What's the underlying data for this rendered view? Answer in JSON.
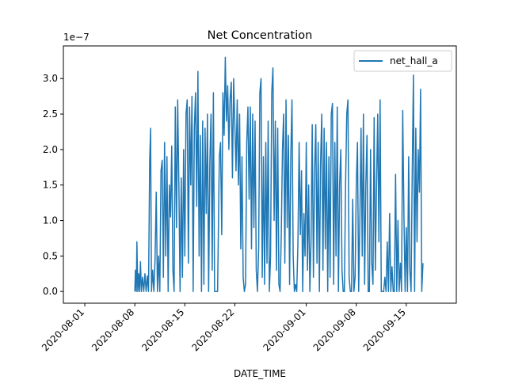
{
  "chart_data": {
    "type": "line",
    "title": "Net Concentration",
    "xlabel": "DATE_TIME",
    "ylabel": "",
    "y_offset_label": "1e−7",
    "y_scale": 1e-07,
    "xlim": [
      "2020-07-29",
      "2020-09-22"
    ],
    "ylim": [
      -1.65e-08,
      3.46e-07
    ],
    "x_ticks": [
      "2020-08-01",
      "2020-08-08",
      "2020-08-15",
      "2020-08-22",
      "2020-09-01",
      "2020-09-08",
      "2020-09-15"
    ],
    "y_ticks": [
      0.0,
      0.5,
      1.0,
      1.5,
      2.0,
      2.5,
      3.0
    ],
    "y_tick_labels": [
      "0.0",
      "0.5",
      "1.0",
      "1.5",
      "2.0",
      "2.5",
      "3.0"
    ],
    "grid": false,
    "legend_position": "top-right",
    "series": [
      {
        "name": "net_hall_a",
        "color": "#1f77b4",
        "points": [
          [
            "2020-08-08T00:00",
            0.0
          ],
          [
            "2020-08-08T02:00",
            3e-08
          ],
          [
            "2020-08-08T05:00",
            0.0
          ],
          [
            "2020-08-08T07:00",
            7e-08
          ],
          [
            "2020-08-08T10:00",
            0.0
          ],
          [
            "2020-08-08T13:00",
            2.5e-08
          ],
          [
            "2020-08-08T16:00",
            0.0
          ],
          [
            "2020-08-08T19:00",
            4.2e-08
          ],
          [
            "2020-08-08T22:00",
            0.0
          ],
          [
            "2020-08-09T02:00",
            2e-08
          ],
          [
            "2020-08-09T06:00",
            0.0
          ],
          [
            "2020-08-09T10:00",
            2.5e-08
          ],
          [
            "2020-08-09T14:00",
            0.0
          ],
          [
            "2020-08-09T18:00",
            2.2e-08
          ],
          [
            "2020-08-09T22:00",
            0.0
          ],
          [
            "2020-08-10T02:00",
            1.85e-07
          ],
          [
            "2020-08-10T05:00",
            2.3e-07
          ],
          [
            "2020-08-10T08:00",
            0.0
          ],
          [
            "2020-08-10T12:00",
            3e-08
          ],
          [
            "2020-08-10T16:00",
            0.0
          ],
          [
            "2020-08-10T20:00",
            4.5e-08
          ],
          [
            "2020-08-11T00:00",
            1.4e-07
          ],
          [
            "2020-08-11T04:00",
            0.0
          ],
          [
            "2020-08-11T08:00",
            5e-08
          ],
          [
            "2020-08-11T12:00",
            0.0
          ],
          [
            "2020-08-11T16:00",
            1.7e-07
          ],
          [
            "2020-08-11T20:00",
            1.85e-07
          ],
          [
            "2020-08-12T00:00",
            2e-08
          ],
          [
            "2020-08-12T04:00",
            2.1e-07
          ],
          [
            "2020-08-12T08:00",
            5e-08
          ],
          [
            "2020-08-12T12:00",
            1.9e-07
          ],
          [
            "2020-08-12T16:00",
            0.0
          ],
          [
            "2020-08-12T20:00",
            1.5e-07
          ],
          [
            "2020-08-13T00:00",
            1.05e-07
          ],
          [
            "2020-08-13T04:00",
            2.05e-07
          ],
          [
            "2020-08-13T08:00",
            3e-08
          ],
          [
            "2020-08-13T12:00",
            0.0
          ],
          [
            "2020-08-13T16:00",
            2.6e-07
          ],
          [
            "2020-08-13T20:00",
            9e-08
          ],
          [
            "2020-08-14T00:00",
            2.7e-07
          ],
          [
            "2020-08-14T04:00",
            1.5e-07
          ],
          [
            "2020-08-14T08:00",
            0.0
          ],
          [
            "2020-08-14T12:00",
            1.6e-07
          ],
          [
            "2020-08-14T16:00",
            2e-08
          ],
          [
            "2020-08-14T20:00",
            2e-07
          ],
          [
            "2020-08-15T00:00",
            5e-08
          ],
          [
            "2020-08-15T04:00",
            2.5e-07
          ],
          [
            "2020-08-15T08:00",
            2.7e-07
          ],
          [
            "2020-08-15T12:00",
            4e-08
          ],
          [
            "2020-08-15T16:00",
            2.6e-07
          ],
          [
            "2020-08-15T20:00",
            1.5e-07
          ],
          [
            "2020-08-16T00:00",
            2.75e-07
          ],
          [
            "2020-08-16T04:00",
            0.0
          ],
          [
            "2020-08-16T08:00",
            2.3e-07
          ],
          [
            "2020-08-16T12:00",
            2.8e-07
          ],
          [
            "2020-08-16T16:00",
            1.2e-07
          ],
          [
            "2020-08-16T20:00",
            3.1e-07
          ],
          [
            "2020-08-17T00:00",
            5e-08
          ],
          [
            "2020-08-17T04:00",
            2.2e-07
          ],
          [
            "2020-08-17T08:00",
            0.0
          ],
          [
            "2020-08-17T12:00",
            2.4e-07
          ],
          [
            "2020-08-17T16:00",
            1e-08
          ],
          [
            "2020-08-17T20:00",
            2.3e-07
          ],
          [
            "2020-08-18T00:00",
            1.1e-07
          ],
          [
            "2020-08-18T04:00",
            2.5e-07
          ],
          [
            "2020-08-18T08:00",
            0.0
          ],
          [
            "2020-08-18T12:00",
            1.8e-07
          ],
          [
            "2020-08-18T16:00",
            2.5e-07
          ],
          [
            "2020-08-18T20:00",
            3e-08
          ],
          [
            "2020-08-19T00:00",
            2.8e-07
          ],
          [
            "2020-08-19T04:00",
            0.0
          ],
          [
            "2020-08-19T08:00",
            0.0
          ],
          [
            "2020-08-19T14:00",
            0.0
          ],
          [
            "2020-08-19T20:00",
            1.9e-07
          ],
          [
            "2020-08-20T00:00",
            2.1e-07
          ],
          [
            "2020-08-20T04:00",
            8e-08
          ],
          [
            "2020-08-20T08:00",
            2.8e-07
          ],
          [
            "2020-08-20T12:00",
            2.2e-07
          ],
          [
            "2020-08-20T16:00",
            3.3e-07
          ],
          [
            "2020-08-20T20:00",
            2.4e-07
          ],
          [
            "2020-08-21T00:00",
            2.9e-07
          ],
          [
            "2020-08-21T04:00",
            2e-07
          ],
          [
            "2020-08-21T08:00",
            2.7e-07
          ],
          [
            "2020-08-21T12:00",
            2.95e-07
          ],
          [
            "2020-08-21T16:00",
            1.6e-07
          ],
          [
            "2020-08-21T20:00",
            3e-07
          ],
          [
            "2020-08-22T00:00",
            2.35e-07
          ],
          [
            "2020-08-22T04:00",
            1.7e-07
          ],
          [
            "2020-08-22T08:00",
            2.7e-07
          ],
          [
            "2020-08-22T12:00",
            1.5e-07
          ],
          [
            "2020-08-22T16:00",
            2.5e-07
          ],
          [
            "2020-08-22T20:00",
            6e-08
          ],
          [
            "2020-08-23T00:00",
            1.9e-07
          ],
          [
            "2020-08-23T04:00",
            2e-08
          ],
          [
            "2020-08-23T08:00",
            0.0
          ],
          [
            "2020-08-23T12:00",
            1e-08
          ],
          [
            "2020-08-23T16:00",
            2.1e-07
          ],
          [
            "2020-08-23T20:00",
            2.6e-07
          ],
          [
            "2020-08-24T00:00",
            1.3e-07
          ],
          [
            "2020-08-24T04:00",
            2.6e-07
          ],
          [
            "2020-08-24T08:00",
            6e-08
          ],
          [
            "2020-08-24T12:00",
            2.5e-07
          ],
          [
            "2020-08-24T16:00",
            9e-08
          ],
          [
            "2020-08-24T20:00",
            2.4e-07
          ],
          [
            "2020-08-25T00:00",
            3e-08
          ],
          [
            "2020-08-25T04:00",
            0.0
          ],
          [
            "2020-08-25T08:00",
            6e-08
          ],
          [
            "2020-08-25T12:00",
            2.8e-07
          ],
          [
            "2020-08-25T16:00",
            3e-07
          ],
          [
            "2020-08-25T20:00",
            2e-08
          ],
          [
            "2020-08-26T00:00",
            1.9e-07
          ],
          [
            "2020-08-26T04:00",
            1e-08
          ],
          [
            "2020-08-26T08:00",
            2.1e-07
          ],
          [
            "2020-08-26T12:00",
            4e-08
          ],
          [
            "2020-08-26T16:00",
            2.4e-07
          ],
          [
            "2020-08-26T20:00",
            0.0
          ],
          [
            "2020-08-27T00:00",
            5e-08
          ],
          [
            "2020-08-27T04:00",
            2.8e-07
          ],
          [
            "2020-08-27T08:00",
            3.15e-07
          ],
          [
            "2020-08-27T12:00",
            1e-07
          ],
          [
            "2020-08-27T16:00",
            2.4e-07
          ],
          [
            "2020-08-27T20:00",
            3e-08
          ],
          [
            "2020-08-28T00:00",
            2.3e-07
          ],
          [
            "2020-08-28T04:00",
            1e-08
          ],
          [
            "2020-08-28T08:00",
            0.0
          ],
          [
            "2020-08-28T12:00",
            8e-08
          ],
          [
            "2020-08-28T16:00",
            2e-07
          ],
          [
            "2020-08-28T20:00",
            2.5e-07
          ],
          [
            "2020-08-29T00:00",
            4e-08
          ],
          [
            "2020-08-29T04:00",
            2.7e-07
          ],
          [
            "2020-08-29T08:00",
            9e-08
          ],
          [
            "2020-08-29T12:00",
            2.2e-07
          ],
          [
            "2020-08-29T16:00",
            1e-08
          ],
          [
            "2020-08-29T20:00",
            1.9e-07
          ],
          [
            "2020-08-30T00:00",
            2.7e-07
          ],
          [
            "2020-08-30T04:00",
            5e-08
          ],
          [
            "2020-08-30T08:00",
            0.0
          ],
          [
            "2020-08-30T12:00",
            1e-08
          ],
          [
            "2020-08-30T16:00",
            0.0
          ],
          [
            "2020-08-30T20:00",
            7e-08
          ],
          [
            "2020-08-31T00:00",
            2.1e-07
          ],
          [
            "2020-08-31T04:00",
            8e-08
          ],
          [
            "2020-08-31T08:00",
            1.7e-07
          ],
          [
            "2020-08-31T12:00",
            0.0
          ],
          [
            "2020-08-31T16:00",
            1.1e-07
          ],
          [
            "2020-08-31T20:00",
            5e-08
          ],
          [
            "2020-09-01T00:00",
            2.1e-07
          ],
          [
            "2020-09-01T04:00",
            3e-08
          ],
          [
            "2020-09-01T08:00",
            1.5e-07
          ],
          [
            "2020-09-01T12:00",
            0.0
          ],
          [
            "2020-09-01T16:00",
            7e-08
          ],
          [
            "2020-09-01T20:00",
            2.35e-07
          ],
          [
            "2020-09-02T00:00",
            2e-08
          ],
          [
            "2020-09-02T04:00",
            1.7e-07
          ],
          [
            "2020-09-02T08:00",
            2.35e-07
          ],
          [
            "2020-09-02T12:00",
            4e-08
          ],
          [
            "2020-09-02T16:00",
            2.1e-07
          ],
          [
            "2020-09-02T20:00",
            0.0
          ],
          [
            "2020-09-03T00:00",
            1.8e-07
          ],
          [
            "2020-09-03T04:00",
            2.5e-07
          ],
          [
            "2020-09-03T08:00",
            3e-08
          ],
          [
            "2020-09-03T12:00",
            2.3e-07
          ],
          [
            "2020-09-03T16:00",
            6e-08
          ],
          [
            "2020-09-03T20:00",
            2.1e-07
          ],
          [
            "2020-09-04T00:00",
            0.0
          ],
          [
            "2020-09-04T04:00",
            1.9e-07
          ],
          [
            "2020-09-04T08:00",
            2e-08
          ],
          [
            "2020-09-04T12:00",
            2.5e-07
          ],
          [
            "2020-09-04T16:00",
            2.65e-07
          ],
          [
            "2020-09-04T20:00",
            1e-08
          ],
          [
            "2020-09-05T00:00",
            2.1e-07
          ],
          [
            "2020-09-05T04:00",
            5e-08
          ],
          [
            "2020-09-05T08:00",
            2.6e-07
          ],
          [
            "2020-09-05T12:00",
            0.0
          ],
          [
            "2020-09-05T16:00",
            1.5e-07
          ],
          [
            "2020-09-05T20:00",
            2e-07
          ],
          [
            "2020-09-06T00:00",
            3e-08
          ],
          [
            "2020-09-06T04:00",
            0.0
          ],
          [
            "2020-09-06T08:00",
            0.0
          ],
          [
            "2020-09-06T12:00",
            1.5e-07
          ],
          [
            "2020-09-06T16:00",
            2.5e-07
          ],
          [
            "2020-09-06T20:00",
            2.7e-07
          ],
          [
            "2020-09-07T00:00",
            2e-08
          ],
          [
            "2020-09-07T04:00",
            0.0
          ],
          [
            "2020-09-07T08:00",
            0.0
          ],
          [
            "2020-09-07T12:00",
            1.3e-07
          ],
          [
            "2020-09-07T16:00",
            0.0
          ],
          [
            "2020-09-07T20:00",
            2e-08
          ],
          [
            "2020-09-08T00:00",
            1.5e-07
          ],
          [
            "2020-09-08T04:00",
            2.1e-07
          ],
          [
            "2020-09-08T08:00",
            0.0
          ],
          [
            "2020-09-08T12:00",
            1e-07
          ],
          [
            "2020-09-08T16:00",
            2.3e-07
          ],
          [
            "2020-09-08T20:00",
            5e-08
          ],
          [
            "2020-09-09T00:00",
            2.5e-07
          ],
          [
            "2020-09-09T04:00",
            1e-08
          ],
          [
            "2020-09-09T08:00",
            1.5e-07
          ],
          [
            "2020-09-09T12:00",
            2.2e-07
          ],
          [
            "2020-09-09T16:00",
            0.0
          ],
          [
            "2020-09-09T20:00",
            0.0
          ],
          [
            "2020-09-10T00:00",
            2e-07
          ],
          [
            "2020-09-10T04:00",
            4e-08
          ],
          [
            "2020-09-10T08:00",
            1e-08
          ],
          [
            "2020-09-10T12:00",
            2.45e-07
          ],
          [
            "2020-09-10T16:00",
            3e-08
          ],
          [
            "2020-09-10T20:00",
            1.5e-07
          ],
          [
            "2020-09-11T00:00",
            2.5e-07
          ],
          [
            "2020-09-11T04:00",
            7e-08
          ],
          [
            "2020-09-11T08:00",
            2.7e-07
          ],
          [
            "2020-09-11T12:00",
            0.0
          ],
          [
            "2020-09-11T16:00",
            0.0
          ],
          [
            "2020-09-11T20:00",
            0.0
          ],
          [
            "2020-09-12T00:00",
            2e-08
          ],
          [
            "2020-09-12T04:00",
            0.0
          ],
          [
            "2020-09-12T08:00",
            7e-08
          ],
          [
            "2020-09-12T12:00",
            0.0
          ],
          [
            "2020-09-12T16:00",
            1.1e-07
          ],
          [
            "2020-09-12T20:00",
            0.0
          ],
          [
            "2020-09-13T00:00",
            3.5e-08
          ],
          [
            "2020-09-13T04:00",
            0.0
          ],
          [
            "2020-09-13T08:00",
            0.0
          ],
          [
            "2020-09-13T12:00",
            1.65e-07
          ],
          [
            "2020-09-13T16:00",
            0.0
          ],
          [
            "2020-09-13T20:00",
            1e-07
          ],
          [
            "2020-09-14T00:00",
            0.0
          ],
          [
            "2020-09-14T04:00",
            4e-08
          ],
          [
            "2020-09-14T08:00",
            0.0
          ],
          [
            "2020-09-14T12:00",
            2.55e-07
          ],
          [
            "2020-09-14T16:00",
            1.1e-07
          ],
          [
            "2020-09-14T20:00",
            0.0
          ],
          [
            "2020-09-15T00:00",
            9e-08
          ],
          [
            "2020-09-15T04:00",
            0.0
          ],
          [
            "2020-09-15T08:00",
            1.9e-07
          ],
          [
            "2020-09-15T12:00",
            3e-08
          ],
          [
            "2020-09-15T16:00",
            0.0
          ],
          [
            "2020-09-15T20:00",
            1.7e-07
          ],
          [
            "2020-09-16T00:00",
            3.05e-07
          ],
          [
            "2020-09-16T04:00",
            0.0
          ],
          [
            "2020-09-16T08:00",
            2.3e-07
          ],
          [
            "2020-09-16T12:00",
            7e-08
          ],
          [
            "2020-09-16T16:00",
            2e-07
          ],
          [
            "2020-09-16T20:00",
            1.4e-07
          ],
          [
            "2020-09-17T00:00",
            2.85e-07
          ],
          [
            "2020-09-17T04:00",
            0.0
          ],
          [
            "2020-09-17T08:00",
            4e-08
          ]
        ]
      }
    ]
  }
}
